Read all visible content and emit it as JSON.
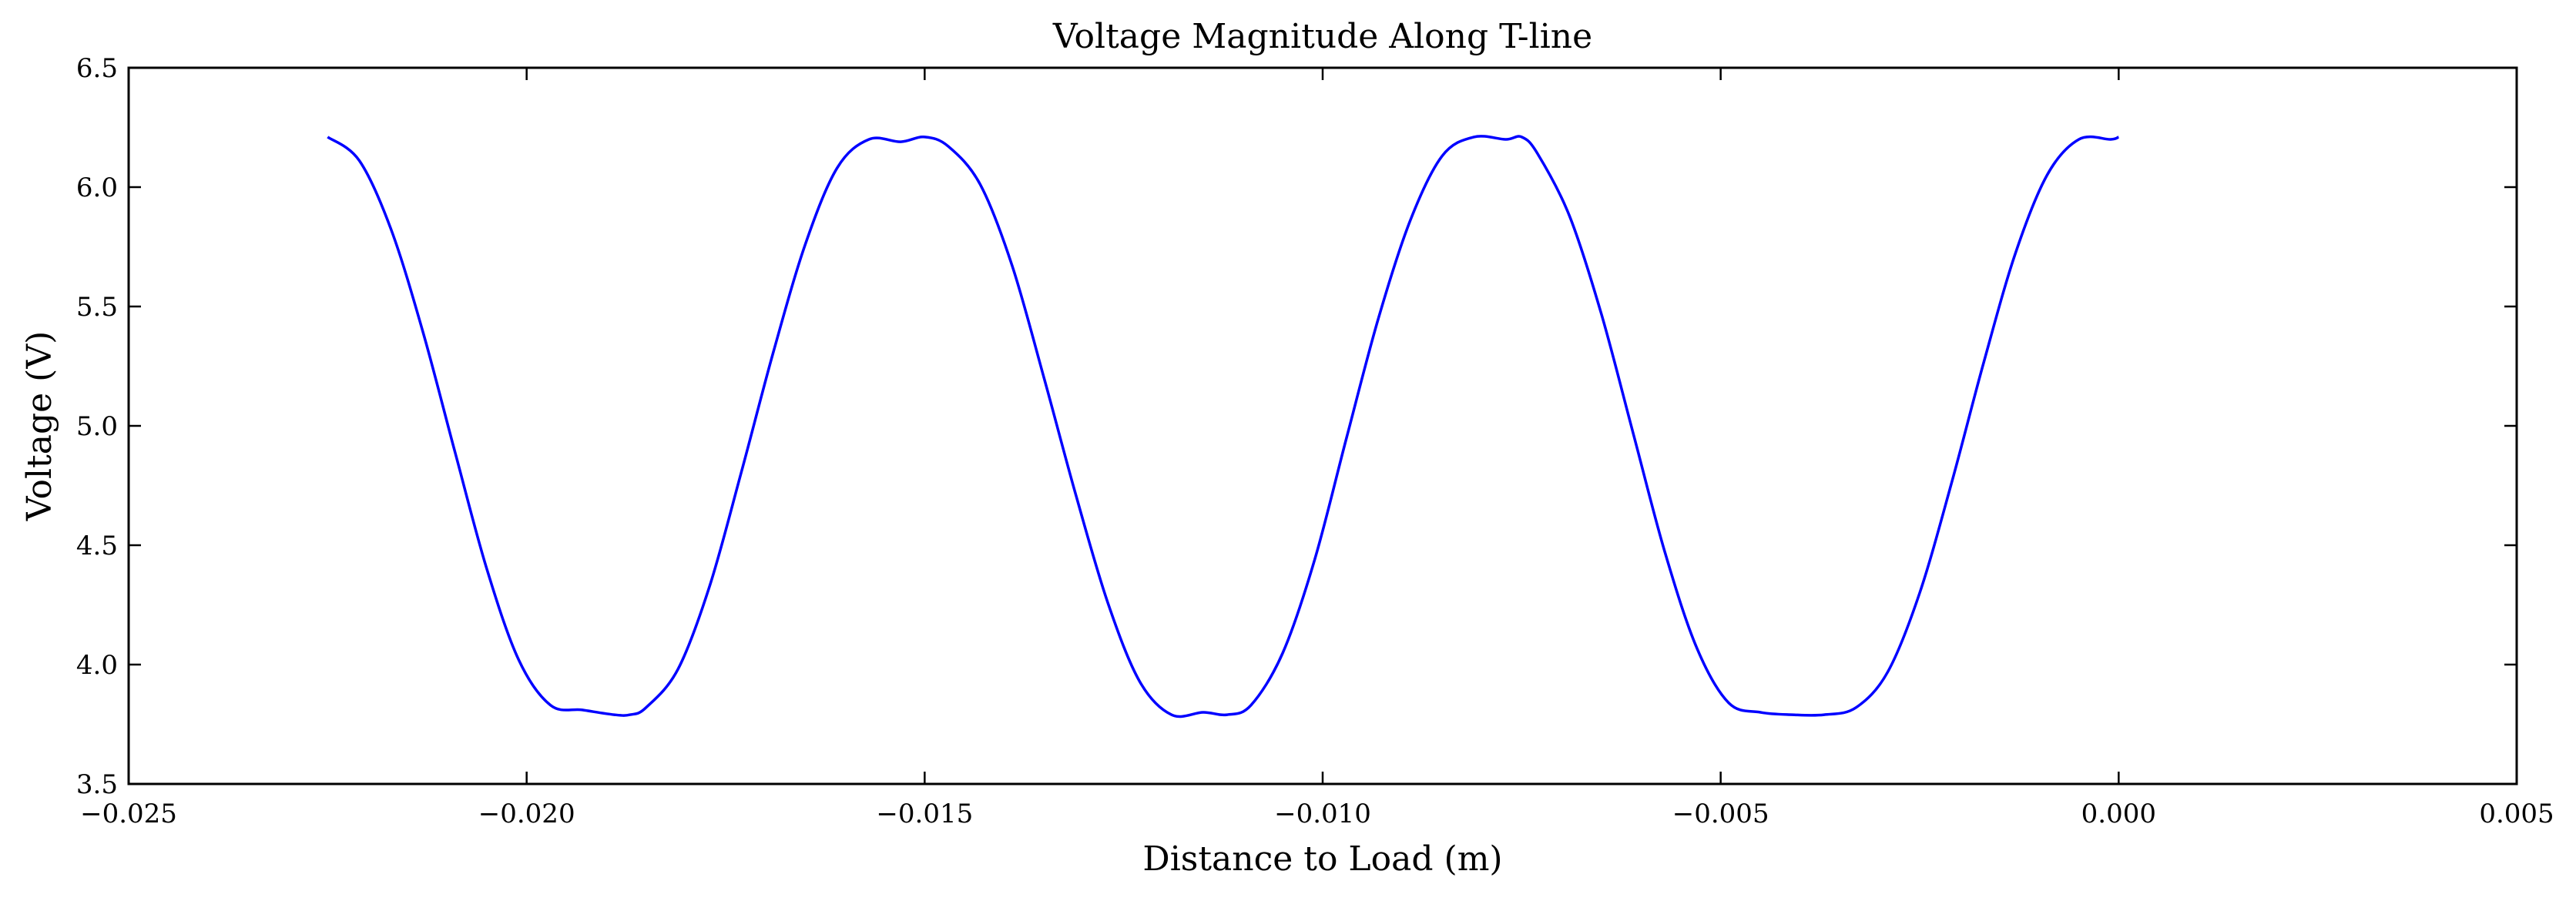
{
  "chart_data": {
    "type": "line",
    "title": "Voltage Magnitude Along T-line",
    "xlabel": "Distance to Load (m)",
    "ylabel": "Voltage (V)",
    "xlim": [
      -0.025,
      0.005
    ],
    "ylim": [
      3.5,
      6.5
    ],
    "x_ticks": [
      -0.025,
      -0.02,
      -0.015,
      -0.01,
      -0.005,
      0.0,
      0.005
    ],
    "x_tick_labels": [
      "−0.025",
      "−0.020",
      "−0.015",
      "−0.010",
      "−0.005",
      "0.000",
      "0.005"
    ],
    "y_ticks": [
      3.5,
      4.0,
      4.5,
      5.0,
      5.5,
      6.0,
      6.5
    ],
    "y_tick_labels": [
      "3.5",
      "4.0",
      "4.5",
      "5.0",
      "5.5",
      "6.0",
      "6.5"
    ],
    "grid": false,
    "line_color": "#0000ff",
    "series": [
      {
        "x": [
          -0.0225,
          -0.0221,
          -0.0217,
          -0.0213,
          -0.0209,
          -0.0205,
          -0.0201,
          -0.0197,
          -0.0193,
          -0.0189,
          -0.0187,
          -0.0185,
          -0.0181,
          -0.0177,
          -0.0173,
          -0.0169,
          -0.0165,
          -0.0161,
          -0.0157,
          -0.0153,
          -0.015,
          -0.0147,
          -0.0143,
          -0.0139,
          -0.0135,
          -0.0131,
          -0.0127,
          -0.0123,
          -0.0119,
          -0.0115,
          -0.0112,
          -0.0109,
          -0.0105,
          -0.0101,
          -0.0097,
          -0.0093,
          -0.0089,
          -0.0085,
          -0.0081,
          -0.0077,
          -0.0075,
          -0.0073,
          -0.0069,
          -0.0065,
          -0.0061,
          -0.0057,
          -0.0053,
          -0.0049,
          -0.0045,
          -0.0041,
          -0.0037,
          -0.0033,
          -0.0029,
          -0.0025,
          -0.0021,
          -0.0017,
          -0.0013,
          -0.0009,
          -0.0005,
          -0.0001,
          0.0
        ],
        "y": [
          6.21,
          6.11,
          5.82,
          5.39,
          4.89,
          4.4,
          4.02,
          3.83,
          3.81,
          3.79,
          3.79,
          3.82,
          3.98,
          4.33,
          4.81,
          5.31,
          5.76,
          6.08,
          6.2,
          6.19,
          6.21,
          6.17,
          6.01,
          5.67,
          5.2,
          4.71,
          4.26,
          3.93,
          3.79,
          3.8,
          3.79,
          3.83,
          4.05,
          4.44,
          4.95,
          5.45,
          5.86,
          6.13,
          6.21,
          6.2,
          6.21,
          6.14,
          5.88,
          5.47,
          4.97,
          4.47,
          4.07,
          3.84,
          3.8,
          3.79,
          3.79,
          3.82,
          3.97,
          4.3,
          4.76,
          5.26,
          5.72,
          6.05,
          6.2,
          6.2,
          6.21
        ]
      }
    ]
  }
}
